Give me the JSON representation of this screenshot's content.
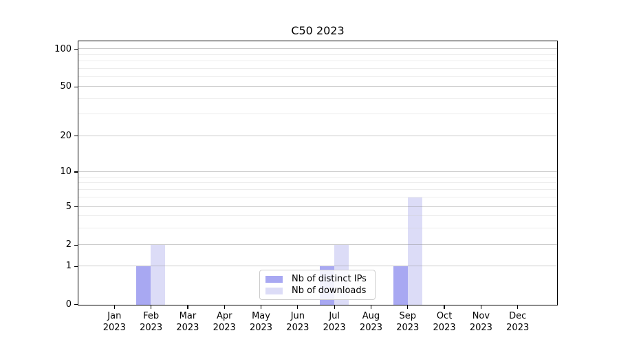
{
  "title": "C50 2023",
  "chart_data": {
    "type": "bar",
    "title": "C50 2023",
    "categories": [
      "Jan 2023",
      "Feb 2023",
      "Mar 2023",
      "Apr 2023",
      "May 2023",
      "Jun 2023",
      "Jul 2023",
      "Aug 2023",
      "Sep 2023",
      "Oct 2023",
      "Nov 2023",
      "Dec 2023"
    ],
    "series": [
      {
        "name": "Nb of distinct IPs",
        "color": "#a8a8f2",
        "values": [
          0,
          1,
          0,
          0,
          0,
          0,
          1,
          0,
          1,
          0,
          0,
          0
        ]
      },
      {
        "name": "Nb of downloads",
        "color": "#dcdcf7",
        "values": [
          0,
          2,
          0,
          0,
          0,
          0,
          2,
          0,
          6,
          0,
          0,
          0
        ]
      }
    ],
    "xlabel": "",
    "ylabel": "",
    "yscale": "symlog",
    "yticks": [
      0,
      1,
      2,
      5,
      10,
      20,
      50,
      100
    ],
    "minor_gridlines": [
      3,
      4,
      6,
      7,
      8,
      9,
      30,
      40,
      60,
      70,
      80,
      90
    ],
    "ylim": [
      0,
      115
    ],
    "grid": true,
    "legend_position": "lower center"
  },
  "colors": {
    "spine": "#000000",
    "major_grid": "#c9c9c9",
    "minor_grid": "#ececec",
    "background": "#ffffff"
  }
}
